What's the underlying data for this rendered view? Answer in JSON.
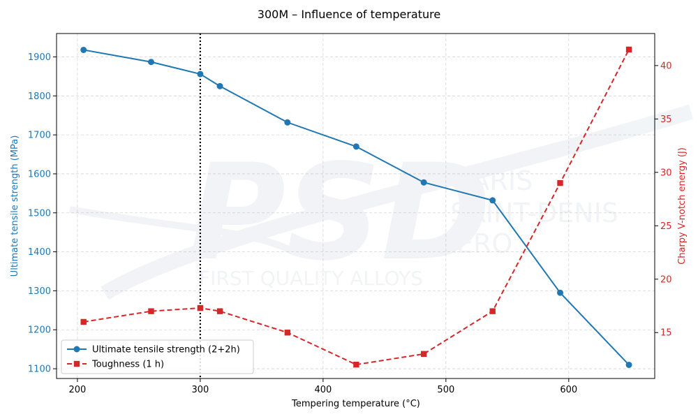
{
  "watermark": {
    "logo": "PSD",
    "line1": "PARIS",
    "line2": "SAINT-DENIS",
    "line3": "AERO",
    "tagline": "FIRST QUALITY ALLOYS"
  },
  "chart_data": {
    "type": "line",
    "title": "300M – Influence of temperature",
    "xlabel": "Tempering temperature (°C)",
    "ylabel_left": "Ultimate tensile strength (MPa)",
    "ylabel_right": "Charpy V-notch energy (J)",
    "xlim": [
      183,
      670
    ],
    "ylim_left": [
      1075,
      1960
    ],
    "ylim_right": [
      10.7,
      43.0
    ],
    "xticks": [
      200,
      300,
      400,
      500,
      600
    ],
    "yticks_left": [
      1100,
      1200,
      1300,
      1400,
      1500,
      1600,
      1700,
      1800,
      1900
    ],
    "yticks_right": [
      15,
      20,
      25,
      30,
      35,
      40
    ],
    "grid": true,
    "legend_position": "lower-left",
    "vline_x": 300,
    "colors": {
      "left": "#1f77b4",
      "right": "#d62728",
      "vline": "#000000"
    },
    "series": [
      {
        "name": "Ultimate tensile strength (2+2h)",
        "axis": "left",
        "marker": "circle",
        "linestyle": "solid",
        "x": [
          205,
          260,
          300,
          316,
          371,
          427,
          482,
          538,
          593,
          649
        ],
        "values": [
          1918,
          1887,
          1856,
          1825,
          1732,
          1670,
          1578,
          1532,
          1295,
          1110
        ]
      },
      {
        "name": "Toughness (1 h)",
        "axis": "right",
        "marker": "square",
        "linestyle": "dashed",
        "x": [
          205,
          260,
          300,
          316,
          371,
          427,
          482,
          538,
          593,
          649
        ],
        "values": [
          16.0,
          17.0,
          17.3,
          17.0,
          15.0,
          12.0,
          13.0,
          17.0,
          29.0,
          41.5
        ]
      }
    ]
  }
}
